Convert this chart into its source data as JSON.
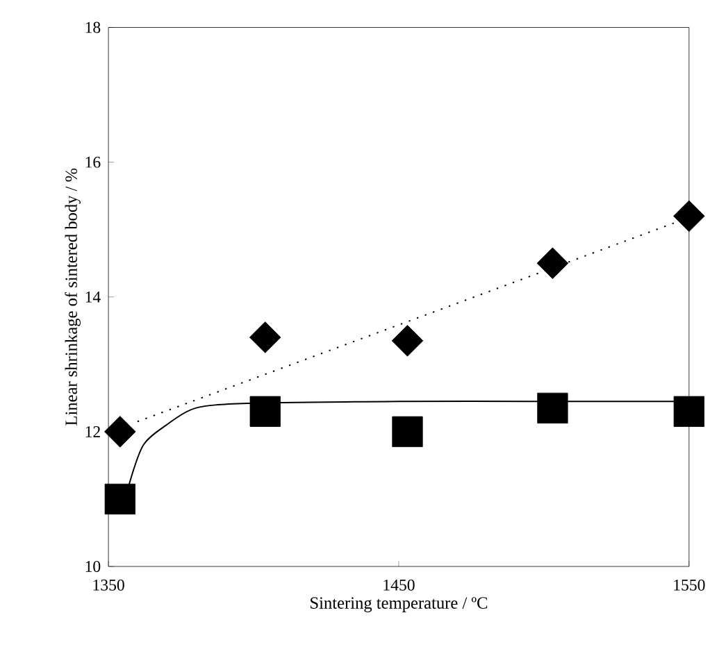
{
  "chart_data": {
    "type": "scatter",
    "xlabel": "Sintering temperature / ºC",
    "ylabel": "Linear shrinkage of sintered body / %",
    "xlim": [
      1350,
      1550
    ],
    "xticks": [
      1350,
      1450,
      1550
    ],
    "ylim": [
      10,
      18
    ],
    "yticks": [
      10,
      12,
      14,
      16,
      18
    ],
    "series": [
      {
        "type": "line",
        "line_style": "dotted",
        "color": "#000000",
        "x": [
          1360,
          1545
        ],
        "values": [
          12.15,
          15.1
        ]
      },
      {
        "type": "line",
        "line_style": "solid",
        "color": "#000000",
        "x": [
          1357,
          1362,
          1370,
          1380,
          1398,
          1450,
          1500,
          1550
        ],
        "values": [
          11.2,
          11.8,
          12.1,
          12.35,
          12.42,
          12.45,
          12.45,
          12.45
        ]
      },
      {
        "type": "scatter",
        "marker": "diamond",
        "color": "#000000",
        "x": [
          1354,
          1404,
          1453,
          1503,
          1550
        ],
        "values": [
          12.0,
          13.4,
          13.35,
          14.5,
          15.2
        ]
      },
      {
        "type": "scatter",
        "marker": "square",
        "color": "#000000",
        "x": [
          1354,
          1404,
          1453,
          1503,
          1550
        ],
        "values": [
          11.0,
          12.3,
          12.0,
          12.35,
          12.3
        ]
      }
    ]
  }
}
